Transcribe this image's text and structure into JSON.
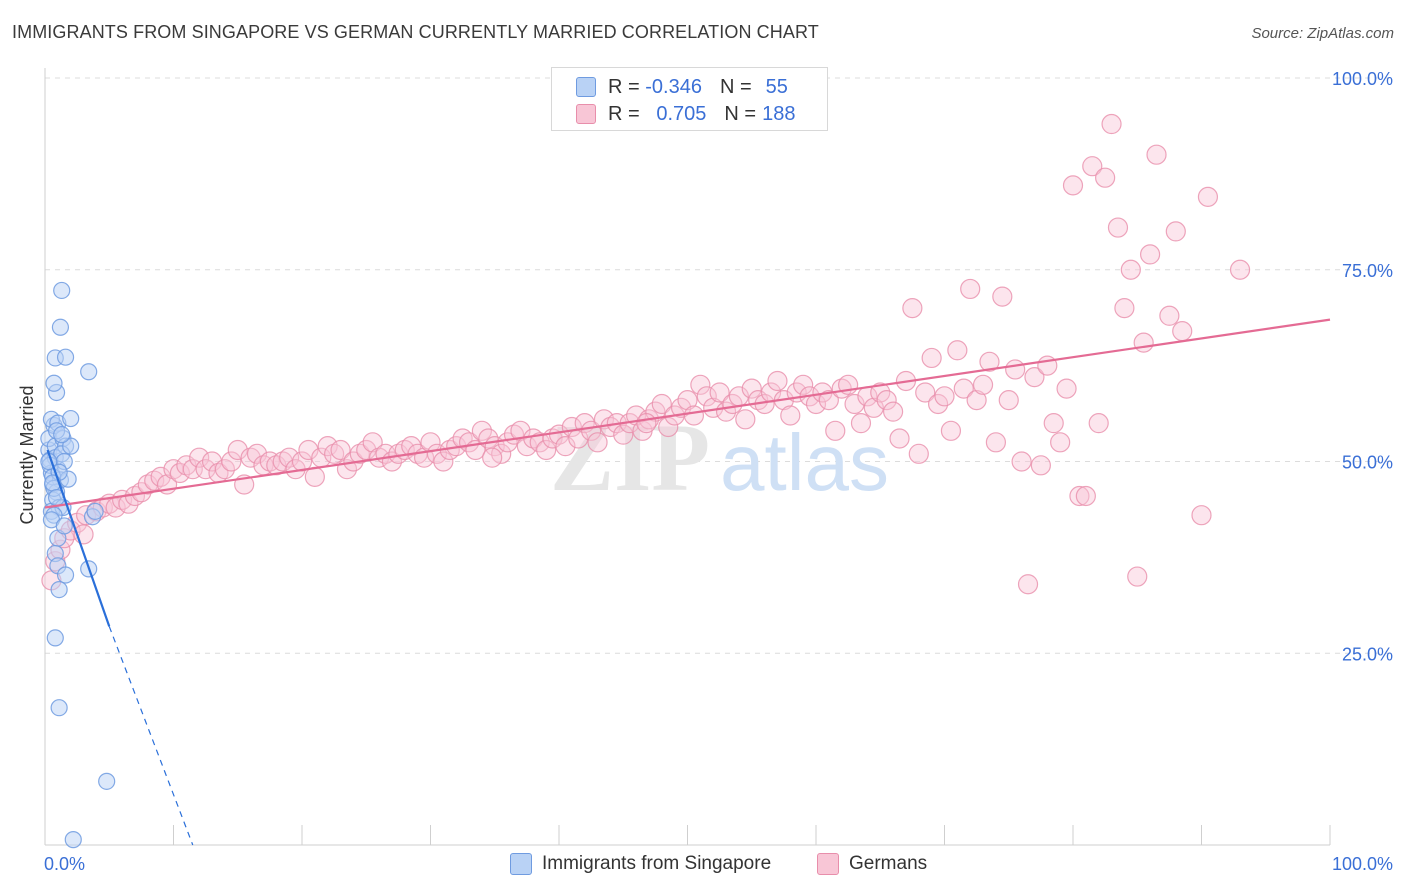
{
  "title": "IMMIGRANTS FROM SINGAPORE VS GERMAN CURRENTLY MARRIED CORRELATION CHART",
  "source": "Source: ZipAtlas.com",
  "watermark": {
    "zip": "ZIP",
    "atlas": "atlas"
  },
  "legend": {
    "rows": [
      {
        "r_label": "R =",
        "r_value": "-0.346",
        "n_label": "N =",
        "n_value": "55",
        "color_fill": "#b9d2f5",
        "color_stroke": "#6f9be0"
      },
      {
        "r_label": "R =",
        "r_value": "0.705",
        "n_label": "N =",
        "n_value": "188",
        "color_fill": "#f8c6d6",
        "color_stroke": "#e88eab"
      }
    ]
  },
  "colors": {
    "blue": "#6f9be0",
    "blue_fill": "#b9d2f5",
    "blue_line": "#2a6fd9",
    "pink": "#e88eab",
    "pink_fill": "#f8c6d6",
    "pink_line": "#e46b94",
    "tick_label": "#3a6fd6",
    "grid": "#dcdcdc"
  },
  "chart_data": {
    "type": "scatter",
    "title": "IMMIGRANTS FROM SINGAPORE VS GERMAN CURRENTLY MARRIED CORRELATION CHART",
    "xlabel": "",
    "ylabel": "Currently Married",
    "xlim": [
      0,
      100
    ],
    "ylim": [
      0,
      100
    ],
    "x_tick_labels": [
      "0.0%",
      "100.0%"
    ],
    "y_ticks": [
      25,
      50,
      75,
      100
    ],
    "y_tick_labels": [
      "25.0%",
      "50.0%",
      "75.0%",
      "100.0%"
    ],
    "grid": true,
    "legend_position": "top-center",
    "series": [
      {
        "name": "Immigrants from Singapore",
        "r": -0.346,
        "n": 55,
        "trend": {
          "solid": [
            [
              0.2,
              51.5
            ],
            [
              5.0,
              28.5
            ]
          ],
          "dashed": [
            [
              5.0,
              28.5
            ],
            [
              11.5,
              0.0
            ]
          ]
        },
        "points": [
          [
            0.3,
            51.5
          ],
          [
            0.4,
            50.2
          ],
          [
            0.5,
            48.5
          ],
          [
            0.6,
            47.0
          ],
          [
            0.3,
            53.0
          ],
          [
            0.7,
            54.7
          ],
          [
            0.5,
            55.5
          ],
          [
            0.8,
            52.0
          ],
          [
            1.0,
            49.0
          ],
          [
            1.2,
            47.6
          ],
          [
            0.9,
            46.0
          ],
          [
            0.6,
            45.0
          ],
          [
            1.1,
            44.0
          ],
          [
            0.8,
            50.5
          ],
          [
            1.4,
            53.0
          ],
          [
            0.4,
            49.5
          ],
          [
            0.6,
            48.0
          ],
          [
            1.6,
            52.0
          ],
          [
            1.3,
            51.0
          ],
          [
            0.5,
            43.5
          ],
          [
            1.8,
            47.7
          ],
          [
            0.7,
            46.5
          ],
          [
            1.0,
            55.0
          ],
          [
            1.5,
            50.0
          ],
          [
            0.9,
            54.0
          ],
          [
            2.0,
            52.0
          ],
          [
            0.3,
            50.0
          ],
          [
            1.1,
            48.6
          ],
          [
            0.6,
            47.2
          ],
          [
            1.3,
            53.5
          ],
          [
            2.0,
            55.6
          ],
          [
            0.8,
            63.5
          ],
          [
            0.9,
            59.0
          ],
          [
            0.7,
            60.2
          ],
          [
            1.2,
            67.5
          ],
          [
            1.3,
            72.3
          ],
          [
            1.6,
            63.6
          ],
          [
            3.4,
            61.7
          ],
          [
            1.4,
            44.0
          ],
          [
            3.7,
            42.8
          ],
          [
            3.9,
            43.5
          ],
          [
            1.0,
            40.0
          ],
          [
            0.8,
            38.0
          ],
          [
            1.0,
            36.4
          ],
          [
            1.6,
            35.2
          ],
          [
            3.4,
            36.0
          ],
          [
            0.7,
            43.0
          ],
          [
            1.1,
            33.3
          ],
          [
            0.8,
            27.0
          ],
          [
            1.1,
            17.9
          ],
          [
            4.8,
            8.3
          ],
          [
            2.2,
            0.7
          ],
          [
            0.5,
            42.4
          ],
          [
            1.5,
            41.6
          ],
          [
            0.9,
            45.3
          ]
        ]
      },
      {
        "name": "Germans",
        "r": 0.705,
        "n": 188,
        "trend": {
          "solid": [
            [
              0.0,
              44.0
            ],
            [
              100.0,
              68.5
            ]
          ]
        },
        "points": [
          [
            0.5,
            34.5
          ],
          [
            0.8,
            37.0
          ],
          [
            1.2,
            38.5
          ],
          [
            1.5,
            40.0
          ],
          [
            2.0,
            41.0
          ],
          [
            2.5,
            42.0
          ],
          [
            3.0,
            40.5
          ],
          [
            3.2,
            43.0
          ],
          [
            4.0,
            43.5
          ],
          [
            4.5,
            44.0
          ],
          [
            5.0,
            44.5
          ],
          [
            5.5,
            44.0
          ],
          [
            6.0,
            45.0
          ],
          [
            6.5,
            44.5
          ],
          [
            7.0,
            45.5
          ],
          [
            7.5,
            46.0
          ],
          [
            8.0,
            47.0
          ],
          [
            8.5,
            47.5
          ],
          [
            9.0,
            48.0
          ],
          [
            9.5,
            47.0
          ],
          [
            10.0,
            49.0
          ],
          [
            10.5,
            48.5
          ],
          [
            11.0,
            49.5
          ],
          [
            11.5,
            49.0
          ],
          [
            12.0,
            50.5
          ],
          [
            12.5,
            49.0
          ],
          [
            13.0,
            50.0
          ],
          [
            13.5,
            48.5
          ],
          [
            14.0,
            49.0
          ],
          [
            14.5,
            50.0
          ],
          [
            15.0,
            51.5
          ],
          [
            15.5,
            47.0
          ],
          [
            16.0,
            50.5
          ],
          [
            16.5,
            51.0
          ],
          [
            17.0,
            49.5
          ],
          [
            17.5,
            50.0
          ],
          [
            18.0,
            49.5
          ],
          [
            18.5,
            50.0
          ],
          [
            19.0,
            50.5
          ],
          [
            19.5,
            49.0
          ],
          [
            20.0,
            50.0
          ],
          [
            20.5,
            51.5
          ],
          [
            21.0,
            48.0
          ],
          [
            21.5,
            50.5
          ],
          [
            22.0,
            52.0
          ],
          [
            22.5,
            51.0
          ],
          [
            23.0,
            51.5
          ],
          [
            23.5,
            49.0
          ],
          [
            24.0,
            50.0
          ],
          [
            24.5,
            51.0
          ],
          [
            25.0,
            51.5
          ],
          [
            25.5,
            52.5
          ],
          [
            26.0,
            50.5
          ],
          [
            26.5,
            51.0
          ],
          [
            27.0,
            50.0
          ],
          [
            27.5,
            51.0
          ],
          [
            28.0,
            51.5
          ],
          [
            28.5,
            52.0
          ],
          [
            29.0,
            51.0
          ],
          [
            29.5,
            50.5
          ],
          [
            30.0,
            52.5
          ],
          [
            30.5,
            51.0
          ],
          [
            31.0,
            50.0
          ],
          [
            31.5,
            51.5
          ],
          [
            32.0,
            52.0
          ],
          [
            32.5,
            53.0
          ],
          [
            33.0,
            52.5
          ],
          [
            33.5,
            51.5
          ],
          [
            34.0,
            54.0
          ],
          [
            34.5,
            53.0
          ],
          [
            35.0,
            52.0
          ],
          [
            35.5,
            51.0
          ],
          [
            36.0,
            52.5
          ],
          [
            36.5,
            53.5
          ],
          [
            37.0,
            54.0
          ],
          [
            37.5,
            52.0
          ],
          [
            38.0,
            53.0
          ],
          [
            38.5,
            52.5
          ],
          [
            39.0,
            51.5
          ],
          [
            39.5,
            53.0
          ],
          [
            40.0,
            53.5
          ],
          [
            40.5,
            52.0
          ],
          [
            41.0,
            54.5
          ],
          [
            41.5,
            53.0
          ],
          [
            42.0,
            55.0
          ],
          [
            42.5,
            54.0
          ],
          [
            43.0,
            52.5
          ],
          [
            43.5,
            55.5
          ],
          [
            44.0,
            54.5
          ],
          [
            44.5,
            55.0
          ],
          [
            45.0,
            53.5
          ],
          [
            45.5,
            55.0
          ],
          [
            46.0,
            56.0
          ],
          [
            46.5,
            54.0
          ],
          [
            47.0,
            55.5
          ],
          [
            47.5,
            56.5
          ],
          [
            48.0,
            57.5
          ],
          [
            48.5,
            54.5
          ],
          [
            49.0,
            56.0
          ],
          [
            49.5,
            57.0
          ],
          [
            50.0,
            58.0
          ],
          [
            50.5,
            56.0
          ],
          [
            51.0,
            60.0
          ],
          [
            51.5,
            58.5
          ],
          [
            52.0,
            57.0
          ],
          [
            52.5,
            59.0
          ],
          [
            53.0,
            56.5
          ],
          [
            53.5,
            57.5
          ],
          [
            54.0,
            58.5
          ],
          [
            54.5,
            55.5
          ],
          [
            55.0,
            59.5
          ],
          [
            55.5,
            58.0
          ],
          [
            56.0,
            57.5
          ],
          [
            56.5,
            59.0
          ],
          [
            57.0,
            60.5
          ],
          [
            57.5,
            58.0
          ],
          [
            58.0,
            56.0
          ],
          [
            58.5,
            59.0
          ],
          [
            59.0,
            60.0
          ],
          [
            59.5,
            58.5
          ],
          [
            60.0,
            57.5
          ],
          [
            60.5,
            59.0
          ],
          [
            61.0,
            58.0
          ],
          [
            61.5,
            54.0
          ],
          [
            62.0,
            59.5
          ],
          [
            62.5,
            60.0
          ],
          [
            63.0,
            57.5
          ],
          [
            63.5,
            55.0
          ],
          [
            64.0,
            58.5
          ],
          [
            64.5,
            57.0
          ],
          [
            65.0,
            59.0
          ],
          [
            65.5,
            58.0
          ],
          [
            66.0,
            56.5
          ],
          [
            66.5,
            53.0
          ],
          [
            67.0,
            60.5
          ],
          [
            67.5,
            70.0
          ],
          [
            68.0,
            51.0
          ],
          [
            68.5,
            59.0
          ],
          [
            69.0,
            63.5
          ],
          [
            69.5,
            57.5
          ],
          [
            70.0,
            58.5
          ],
          [
            70.5,
            54.0
          ],
          [
            71.0,
            64.5
          ],
          [
            71.5,
            59.5
          ],
          [
            72.0,
            72.5
          ],
          [
            72.5,
            58.0
          ],
          [
            73.0,
            60.0
          ],
          [
            73.5,
            63.0
          ],
          [
            74.0,
            52.5
          ],
          [
            74.5,
            71.5
          ],
          [
            75.0,
            58.0
          ],
          [
            75.5,
            62.0
          ],
          [
            76.0,
            50.0
          ],
          [
            76.5,
            34.0
          ],
          [
            77.0,
            61.0
          ],
          [
            77.5,
            49.5
          ],
          [
            78.0,
            62.5
          ],
          [
            78.5,
            55.0
          ],
          [
            79.0,
            52.5
          ],
          [
            79.5,
            59.5
          ],
          [
            80.0,
            86.0
          ],
          [
            80.5,
            45.5
          ],
          [
            81.0,
            45.5
          ],
          [
            81.5,
            88.5
          ],
          [
            82.0,
            55.0
          ],
          [
            82.5,
            87.0
          ],
          [
            83.0,
            94.0
          ],
          [
            83.5,
            80.5
          ],
          [
            84.0,
            70.0
          ],
          [
            84.5,
            75.0
          ],
          [
            85.0,
            35.0
          ],
          [
            85.5,
            65.5
          ],
          [
            86.0,
            77.0
          ],
          [
            86.5,
            90.0
          ],
          [
            87.5,
            69.0
          ],
          [
            88.0,
            80.0
          ],
          [
            88.5,
            67.0
          ],
          [
            90.5,
            84.5
          ],
          [
            93.0,
            75.0
          ],
          [
            90.0,
            43.0
          ],
          [
            34.8,
            50.5
          ],
          [
            46.8,
            55.0
          ]
        ]
      }
    ]
  },
  "bottom_legend": [
    "Immigrants from Singapore",
    "Germans"
  ]
}
